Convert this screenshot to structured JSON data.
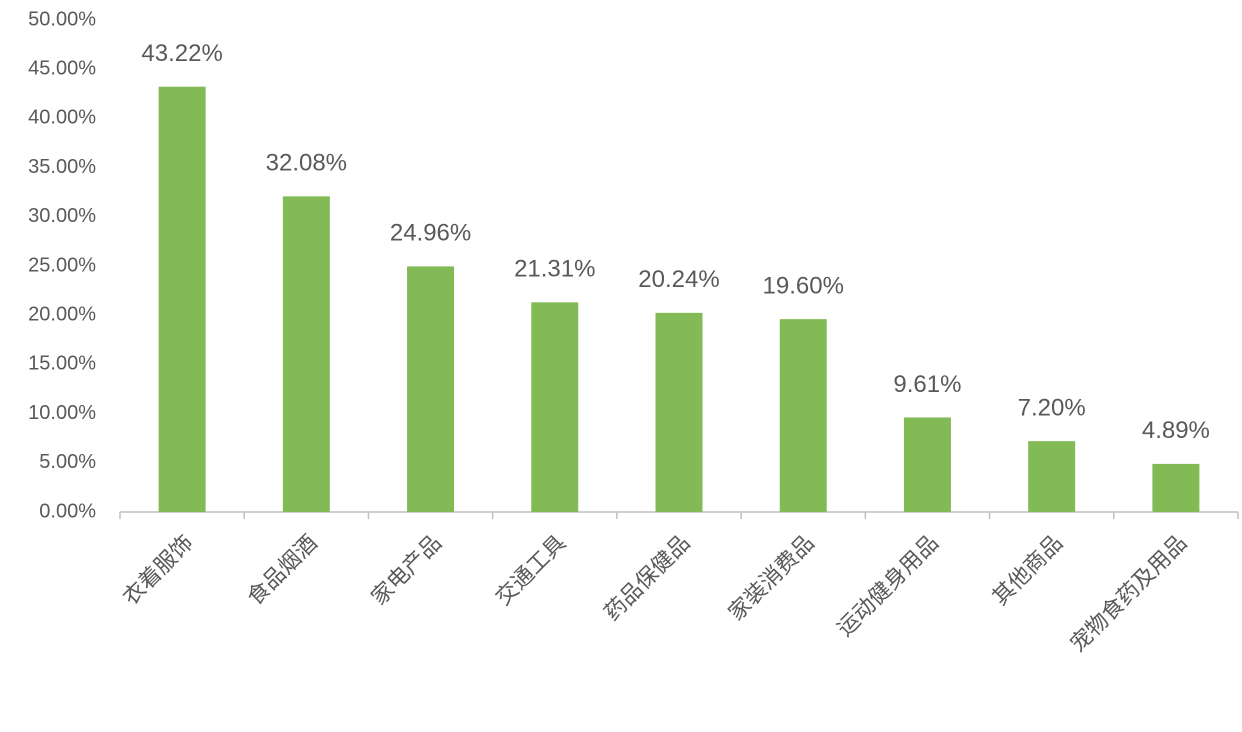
{
  "chart_data": {
    "type": "bar",
    "categories": [
      "衣着服饰",
      "食品烟酒",
      "家电产品",
      "交通工具",
      "药品保健品",
      "家装消费品",
      "运动健身用品",
      "其他商品",
      "宠物食药及用品"
    ],
    "values": [
      43.22,
      32.08,
      24.96,
      21.31,
      20.24,
      19.6,
      9.61,
      7.2,
      4.89
    ],
    "value_labels": [
      "43.22%",
      "32.08%",
      "24.96%",
      "21.31%",
      "20.24%",
      "19.60%",
      "9.61%",
      "7.20%",
      "4.89%"
    ],
    "color": "#82bb55",
    "ylim": [
      0,
      50
    ],
    "yticks": [
      {
        "value": 0,
        "label": "0.00%"
      },
      {
        "value": 5,
        "label": "5.00%"
      },
      {
        "value": 10,
        "label": "10.00%"
      },
      {
        "value": 15,
        "label": "15.00%"
      },
      {
        "value": 20,
        "label": "20.00%"
      },
      {
        "value": 25,
        "label": "25.00%"
      },
      {
        "value": 30,
        "label": "30.00%"
      },
      {
        "value": 35,
        "label": "35.00%"
      },
      {
        "value": 40,
        "label": "40.00%"
      },
      {
        "value": 45,
        "label": "45.00%"
      },
      {
        "value": 50,
        "label": "50.00%"
      }
    ],
    "grid": false
  }
}
